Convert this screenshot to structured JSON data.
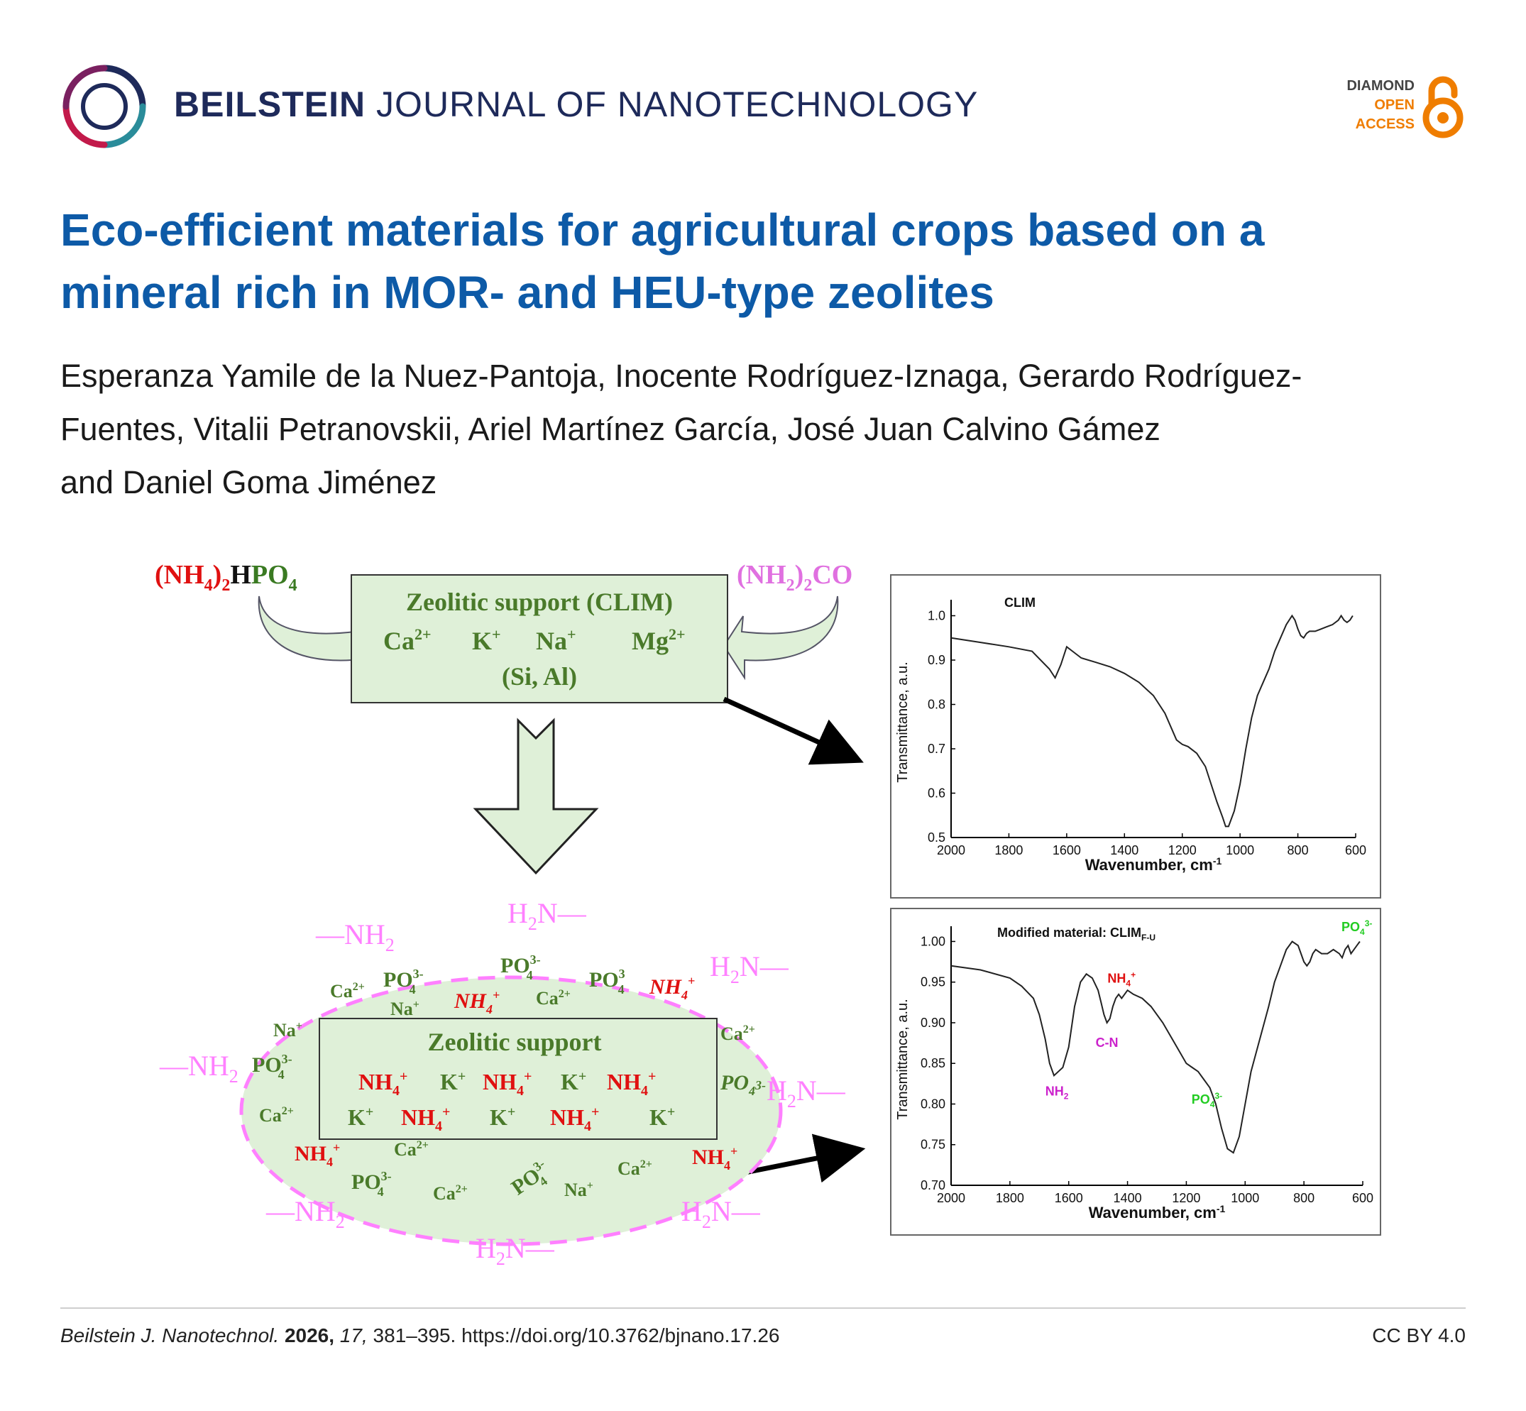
{
  "header": {
    "journal_bold": "BEILSTEIN",
    "journal_rest": "JOURNAL OF NANOTECHNOLOGY",
    "oa_line1": "DIAMOND",
    "oa_line2": "OPEN",
    "oa_line3": "ACCESS"
  },
  "article": {
    "title_line1": "Eco-efficient materials for agricultural crops based on a",
    "title_line2": "mineral rich in MOR- and HEU-type zeolites",
    "authors_line1": "Esperanza Yamile de la Nuez-Pantoja, Inocente Rodríguez-Iznaga, Gerardo Rodríguez-",
    "authors_line2": "Fuentes, Vitalii Petranovskii, Ariel Martínez García, José Juan Calvino Gámez",
    "authors_line3": "and Daniel Goma Jiménez"
  },
  "scheme": {
    "reagent_left_a": "(NH",
    "reagent_left_sub1": "4",
    "reagent_left_b": ")",
    "reagent_left_sub2": "2",
    "reagent_left_c": "H",
    "reagent_left_d": "PO",
    "reagent_left_sub3": "4",
    "reagent_right_a": "(NH",
    "reagent_right_sub1": "2",
    "reagent_right_b": ")",
    "reagent_right_sub2": "2",
    "reagent_right_c": "CO",
    "support_title": "Zeolitic support (CLIM)",
    "cations": [
      "Ca",
      "K",
      "Na",
      "Mg"
    ],
    "cation_charges": [
      "2+",
      "+",
      "+",
      "2+"
    ],
    "framework": "(Si, Al)",
    "inner_title": "Zeolitic support",
    "inner_row1": [
      "NH4+",
      "K+",
      "NH4+",
      "K+",
      "NH4+"
    ],
    "inner_row2": [
      "K+",
      "NH4+",
      "K+",
      "NH4+",
      "K+"
    ],
    "nh2": "NH",
    "nh2_sub": "2",
    "h2n_h": "H",
    "h2n_sub": "2",
    "h2n_n": "N",
    "dash": "—"
  },
  "chart_data": [
    {
      "type": "line",
      "title": "CLIM",
      "xlabel": "Wavenumber, cm",
      "xlabel_sup": "-1",
      "ylabel": "Transmittance, a.u.",
      "xlim": [
        2000,
        600
      ],
      "ylim": [
        0.5,
        1.02
      ],
      "xticks": [
        "2000",
        "1800",
        "1600",
        "1400",
        "1200",
        "1000",
        "800",
        "600"
      ],
      "yticks": [
        "1.0",
        "0.9",
        "0.8",
        "0.7",
        "0.6",
        "0.5"
      ],
      "x": [
        2000,
        1900,
        1800,
        1720,
        1660,
        1640,
        1620,
        1600,
        1580,
        1550,
        1500,
        1450,
        1400,
        1350,
        1300,
        1260,
        1220,
        1200,
        1180,
        1150,
        1120,
        1100,
        1080,
        1060,
        1050,
        1040,
        1020,
        1000,
        980,
        960,
        940,
        920,
        900,
        880,
        860,
        840,
        820,
        810,
        800,
        790,
        780,
        770,
        760,
        740,
        720,
        700,
        680,
        660,
        650,
        640,
        630,
        620,
        610
      ],
      "y": [
        0.95,
        0.94,
        0.93,
        0.92,
        0.88,
        0.86,
        0.89,
        0.93,
        0.92,
        0.905,
        0.895,
        0.885,
        0.87,
        0.85,
        0.82,
        0.78,
        0.72,
        0.71,
        0.705,
        0.69,
        0.66,
        0.62,
        0.58,
        0.545,
        0.525,
        0.525,
        0.56,
        0.62,
        0.7,
        0.77,
        0.82,
        0.85,
        0.88,
        0.92,
        0.95,
        0.98,
        1.0,
        0.99,
        0.97,
        0.955,
        0.95,
        0.96,
        0.965,
        0.965,
        0.97,
        0.975,
        0.98,
        0.99,
        1.0,
        0.99,
        0.985,
        0.99,
        1.0
      ]
    },
    {
      "type": "line",
      "title": "Modified material: CLIM",
      "title_sub": "F-U",
      "xlabel": "Wavenumber, cm",
      "xlabel_sup": "-1",
      "ylabel": "Transmittance, a.u.",
      "xlim": [
        2000,
        600
      ],
      "ylim": [
        0.7,
        1.01
      ],
      "xticks": [
        "2000",
        "1800",
        "1600",
        "1400",
        "1200",
        "1000",
        "800",
        "600"
      ],
      "yticks": [
        "1.00",
        "0.95",
        "0.90",
        "0.85",
        "0.80",
        "0.75",
        "0.70"
      ],
      "x": [
        2000,
        1900,
        1800,
        1760,
        1720,
        1700,
        1680,
        1665,
        1650,
        1635,
        1620,
        1600,
        1580,
        1560,
        1540,
        1520,
        1500,
        1490,
        1480,
        1470,
        1460,
        1450,
        1440,
        1430,
        1420,
        1410,
        1400,
        1380,
        1350,
        1320,
        1280,
        1240,
        1200,
        1180,
        1160,
        1140,
        1120,
        1100,
        1080,
        1060,
        1040,
        1020,
        1000,
        980,
        950,
        920,
        900,
        880,
        860,
        840,
        820,
        810,
        800,
        790,
        780,
        770,
        760,
        740,
        720,
        700,
        680,
        670,
        660,
        650,
        640,
        620,
        610
      ],
      "y": [
        0.97,
        0.965,
        0.955,
        0.945,
        0.93,
        0.91,
        0.88,
        0.85,
        0.835,
        0.84,
        0.845,
        0.87,
        0.92,
        0.95,
        0.96,
        0.955,
        0.94,
        0.925,
        0.91,
        0.9,
        0.905,
        0.92,
        0.93,
        0.935,
        0.93,
        0.935,
        0.94,
        0.935,
        0.93,
        0.92,
        0.9,
        0.875,
        0.85,
        0.845,
        0.84,
        0.83,
        0.82,
        0.8,
        0.77,
        0.745,
        0.74,
        0.76,
        0.8,
        0.84,
        0.88,
        0.92,
        0.95,
        0.97,
        0.99,
        1.0,
        0.995,
        0.985,
        0.975,
        0.97,
        0.975,
        0.985,
        0.99,
        0.985,
        0.985,
        0.99,
        0.985,
        0.98,
        0.99,
        0.995,
        0.985,
        0.995,
        1.0
      ],
      "annotations": [
        {
          "label": "NH",
          "sub": "2",
          "sup": "",
          "x": 1640,
          "color": "#cc22cc"
        },
        {
          "label": "C-N",
          "sub": "",
          "sup": "",
          "x": 1470,
          "color": "#cc22cc"
        },
        {
          "label": "NH",
          "sub": "4",
          "sup": "+",
          "x": 1420,
          "color": "#e01010"
        },
        {
          "label": "PO",
          "sub": "4",
          "sup": "3-",
          "x": 1130,
          "color": "#22cc22"
        },
        {
          "label": "PO",
          "sub": "4",
          "sup": "3-",
          "x": 620,
          "color": "#22cc22"
        }
      ]
    }
  ],
  "footer": {
    "journal_abbrev": "Beilstein J. Nanotechnol.",
    "year": "2026,",
    "volume": "17,",
    "pages": "381–395.",
    "doi": "https://doi.org/10.3762/bjnano.17.26",
    "license": "CC BY 4.0"
  }
}
